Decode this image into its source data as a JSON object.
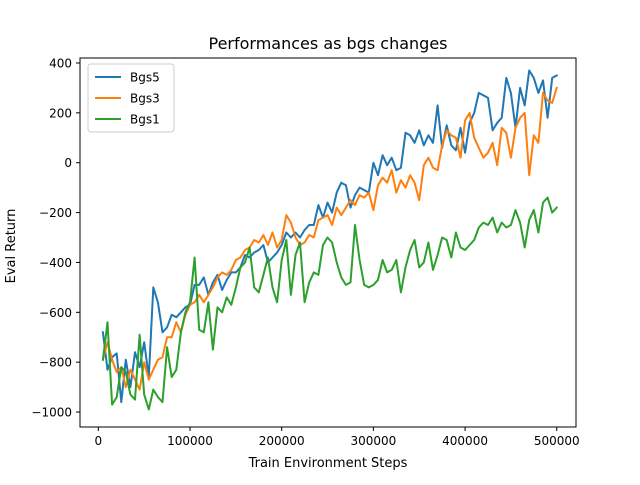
{
  "chart_data": {
    "type": "line",
    "title": "Performances as bgs changes",
    "xlabel": "Train Environment Steps",
    "ylabel": "Eval Return",
    "xlim": [
      -20000,
      521000
    ],
    "ylim": [
      -1060,
      420
    ],
    "xticks": [
      0,
      100000,
      200000,
      300000,
      400000,
      500000
    ],
    "xtick_labels": [
      "0",
      "100000",
      "200000",
      "300000",
      "400000",
      "500000"
    ],
    "yticks": [
      -1000,
      -800,
      -600,
      -400,
      -200,
      0,
      200,
      400
    ],
    "ytick_labels": [
      "−1000",
      "−800",
      "−600",
      "−400",
      "−200",
      "0",
      "200",
      "400"
    ],
    "grid": false,
    "legend_position": "upper-left",
    "x": [
      5000,
      10000,
      15000,
      20000,
      25000,
      30000,
      35000,
      40000,
      45000,
      50000,
      55000,
      60000,
      65000,
      70000,
      75000,
      80000,
      85000,
      90000,
      95000,
      100000,
      105000,
      110000,
      115000,
      120000,
      125000,
      130000,
      135000,
      140000,
      145000,
      150000,
      155000,
      160000,
      165000,
      170000,
      175000,
      180000,
      185000,
      190000,
      195000,
      200000,
      205000,
      210000,
      215000,
      220000,
      225000,
      230000,
      235000,
      240000,
      245000,
      250000,
      255000,
      260000,
      265000,
      270000,
      275000,
      280000,
      285000,
      290000,
      295000,
      300000,
      305000,
      310000,
      315000,
      320000,
      325000,
      330000,
      335000,
      340000,
      345000,
      350000,
      355000,
      360000,
      365000,
      370000,
      375000,
      380000,
      385000,
      390000,
      395000,
      400000,
      405000,
      410000,
      415000,
      420000,
      425000,
      430000,
      435000,
      440000,
      445000,
      450000,
      455000,
      460000,
      465000,
      470000,
      475000,
      480000,
      485000,
      490000,
      495000,
      500000
    ],
    "series": [
      {
        "name": "Bgs5",
        "color": "#1f77b4",
        "values": [
          -680,
          -830,
          -780,
          -765,
          -960,
          -790,
          -900,
          -760,
          -820,
          -720,
          -860,
          -500,
          -560,
          -680,
          -660,
          -610,
          -620,
          -600,
          -580,
          -570,
          -490,
          -490,
          -460,
          -530,
          -480,
          -450,
          -510,
          -470,
          -440,
          -440,
          -420,
          -370,
          -380,
          -360,
          -350,
          -330,
          -400,
          -380,
          -360,
          -330,
          -280,
          -300,
          -280,
          -300,
          -270,
          -250,
          -250,
          -170,
          -220,
          -160,
          -200,
          -120,
          -80,
          -90,
          -180,
          -130,
          -100,
          -110,
          -120,
          0,
          -50,
          30,
          -10,
          20,
          -30,
          -20,
          120,
          110,
          80,
          130,
          70,
          110,
          80,
          230,
          60,
          150,
          70,
          50,
          140,
          40,
          160,
          200,
          280,
          270,
          260,
          130,
          160,
          180,
          340,
          280,
          140,
          300,
          230,
          370,
          340,
          280,
          330,
          180,
          340,
          350
        ]
      },
      {
        "name": "Bgs3",
        "color": "#ff7f0e",
        "values": [
          -790,
          -720,
          -790,
          -840,
          -820,
          -900,
          -830,
          -870,
          -910,
          -800,
          -870,
          -830,
          -790,
          -780,
          -700,
          -700,
          -640,
          -680,
          -610,
          -570,
          -560,
          -530,
          -560,
          -530,
          -500,
          -460,
          -440,
          -450,
          -430,
          -390,
          -380,
          -350,
          -340,
          -310,
          -320,
          -290,
          -330,
          -280,
          -340,
          -310,
          -210,
          -240,
          -300,
          -330,
          -320,
          -290,
          -300,
          -230,
          -220,
          -210,
          -250,
          -180,
          -210,
          -180,
          -150,
          -170,
          -130,
          -140,
          -120,
          -190,
          -90,
          -60,
          -80,
          -30,
          -120,
          -70,
          -100,
          -50,
          -80,
          -150,
          -10,
          20,
          -20,
          -30,
          70,
          130,
          110,
          100,
          20,
          170,
          200,
          100,
          60,
          20,
          40,
          80,
          -10,
          140,
          120,
          20,
          140,
          180,
          200,
          -50,
          110,
          80,
          280,
          250,
          240,
          300
        ]
      },
      {
        "name": "Bgs1",
        "color": "#2ca02c",
        "values": [
          -790,
          -640,
          -970,
          -940,
          -820,
          -840,
          -930,
          -950,
          -690,
          -930,
          -990,
          -910,
          -940,
          -960,
          -740,
          -860,
          -830,
          -680,
          -600,
          -560,
          -380,
          -670,
          -680,
          -560,
          -750,
          -580,
          -600,
          -540,
          -570,
          -500,
          -420,
          -400,
          -340,
          -500,
          -520,
          -450,
          -380,
          -500,
          -560,
          -390,
          -310,
          -530,
          -370,
          -320,
          -560,
          -480,
          -440,
          -450,
          -330,
          -300,
          -320,
          -400,
          -460,
          -490,
          -480,
          -250,
          -390,
          -490,
          -500,
          -490,
          -470,
          -390,
          -440,
          -430,
          -390,
          -520,
          -420,
          -350,
          -310,
          -420,
          -400,
          -320,
          -430,
          -370,
          -300,
          -310,
          -380,
          -280,
          -340,
          -350,
          -330,
          -310,
          -260,
          -240,
          -250,
          -220,
          -280,
          -240,
          -260,
          -250,
          -190,
          -240,
          -340,
          -230,
          -190,
          -280,
          -160,
          -140,
          -200,
          -180
        ]
      }
    ]
  }
}
